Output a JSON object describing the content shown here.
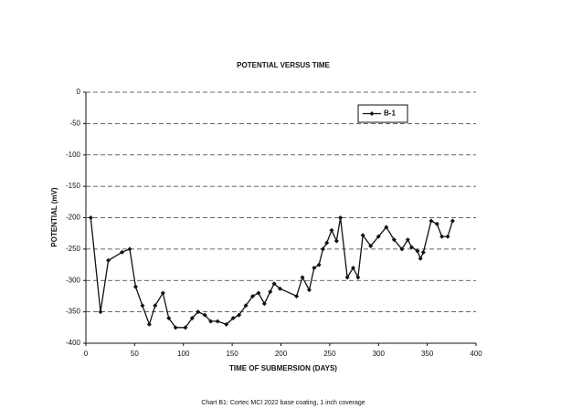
{
  "chart_data": {
    "type": "line",
    "title": "POTENTIAL VERSUS TIME",
    "x_label": "TIME OF SUBMERSION (DAYS)",
    "y_label": "POTENTIAL (mV)",
    "caption": "Chart B1: Cortec MCI 2022 base coating, 1 inch coverage",
    "legend": "upper right",
    "grid": true,
    "xlim": [
      0,
      400
    ],
    "xticks": [
      0,
      50,
      100,
      150,
      200,
      250,
      300,
      350,
      400
    ],
    "ylim": [
      -400,
      0
    ],
    "yticks": [
      0,
      -50,
      -100,
      -150,
      -200,
      -250,
      -300,
      -350,
      -400
    ],
    "series": [
      {
        "name": "B-1",
        "color": "#111111",
        "x": [
          5,
          15,
          23,
          37,
          45,
          51,
          58,
          65,
          71,
          79,
          85,
          92,
          102,
          109,
          115,
          122,
          128,
          135,
          144,
          151,
          157,
          164,
          171,
          177,
          183,
          189,
          193,
          199,
          216,
          222,
          229,
          234,
          239,
          243,
          247,
          252,
          257,
          261,
          268,
          274,
          279,
          284,
          292,
          300,
          308,
          316,
          324,
          330,
          334,
          340,
          343,
          346,
          354,
          360,
          365,
          371,
          376
        ],
        "values": [
          -200,
          -350,
          -268,
          -255,
          -250,
          -310,
          -340,
          -370,
          -340,
          -320,
          -360,
          -375,
          -375,
          -360,
          -350,
          -355,
          -365,
          -365,
          -370,
          -360,
          -355,
          -340,
          -325,
          -320,
          -337,
          -318,
          -305,
          -313,
          -325,
          -295,
          -315,
          -280,
          -275,
          -250,
          -240,
          -220,
          -237,
          -200,
          -295,
          -280,
          -295,
          -228,
          -245,
          -230,
          -215,
          -235,
          -250,
          -235,
          -247,
          -253,
          -265,
          -255,
          -205,
          -210,
          -230,
          -230,
          -205
        ]
      }
    ]
  }
}
